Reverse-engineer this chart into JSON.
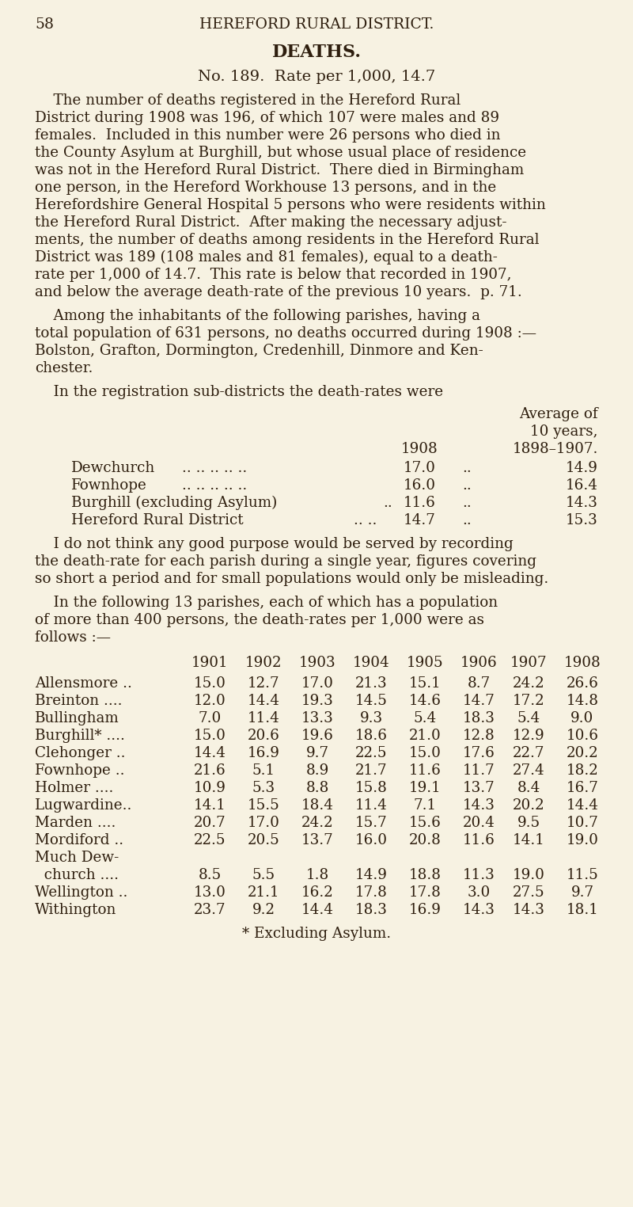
{
  "bg_color": "#f7f2e2",
  "text_color": "#2e1e0e",
  "page_number": "58",
  "header": "HEREFORD RURAL DISTRICT.",
  "title": "DEATHS.",
  "subtitle": "No. 189.  Rate per 1,000, 14.7",
  "p1_lines": [
    "    The number of deaths registered in the Hereford Rural",
    "District during 1908 was 196, of which 107 were males and 89",
    "females.  Included in this number were 26 persons who died in",
    "the County Asylum at Burghill, but whose usual place of residence",
    "was not in the Hereford Rural District.  There died in Birmingham",
    "one person, in the Hereford Workhouse 13 persons, and in the",
    "Herefordshire General Hospital 5 persons who were residents within",
    "the Hereford Rural District.  After making the necessary adjust-",
    "ments, the number of deaths among residents in the Hereford Rural",
    "District was 189 (108 males and 81 females), equal to a death-",
    "rate per 1,000 of 14.7.  This rate is below that recorded in 1907,",
    "and below the average death-rate of the previous 10 years.  p. 71."
  ],
  "p2_lines": [
    "    Among the inhabitants of the following parishes, having a",
    "total population of 631 persons, no deaths occurred during 1908 :—",
    "Bolston, Grafton, Dormington, Credenhill, Dinmore and Ken-",
    "chester."
  ],
  "p3_lines": [
    "    In the registration sub-districts the death-rates were"
  ],
  "table1_avg_of": "Average of",
  "table1_10years": "10 years,",
  "table1_year_col": "1908",
  "table1_avg_col": "1898–1907.",
  "table1_rows": [
    [
      "Dewchurch",
      ".. .. .. .. ..",
      "17.0",
      "..",
      "14.9"
    ],
    [
      "Fownhope",
      ".. .. .. .. ..",
      "16.0",
      "..",
      "16.4"
    ],
    [
      "Burghill (excluding Asylum)",
      "..",
      "11.6",
      "..",
      "14.3"
    ],
    [
      "Hereford Rural District",
      ".. ..",
      "14.7",
      "..",
      "15.3"
    ]
  ],
  "p4_lines": [
    "    I do not think any good purpose would be served by recording",
    "the death-rate for each parish during a single year, figures covering",
    "so short a period and for small populations would only be misleading."
  ],
  "p5_lines": [
    "    In the following 13 parishes, each of which has a population",
    "of more than 400 persons, the death-rates per 1,000 were as",
    "follows :—"
  ],
  "table2_years": [
    "1901",
    "1902",
    "1903",
    "1904",
    "1905",
    "1906",
    "1907",
    "1908"
  ],
  "table2_rows": [
    [
      "Allensmore ..",
      "15.0",
      "12.7",
      "17.0",
      "21.3",
      "15.1",
      "8.7",
      "24.2",
      "26.6"
    ],
    [
      "Breinton ....",
      "12.0",
      "14.4",
      "19.3",
      "14.5",
      "14.6",
      "14.7",
      "17.2",
      "14.8"
    ],
    [
      "Bullingham",
      "7.0",
      "11.4",
      "13.3",
      "9.3",
      "5.4",
      "18.3",
      "5.4",
      "9.0"
    ],
    [
      "Burghill* ....",
      "15.0",
      "20.6",
      "19.6",
      "18.6",
      "21.0",
      "12.8",
      "12.9",
      "10.6"
    ],
    [
      "Clehonger ..",
      "14.4",
      "16.9",
      "9.7",
      "22.5",
      "15.0",
      "17.6",
      "22.7",
      "20.2"
    ],
    [
      "Fownhope ..",
      "21.6",
      "5.1",
      "8.9",
      "21.7",
      "11.6",
      "11.7",
      "27.4",
      "18.2"
    ],
    [
      "Holmer ....",
      "10.9",
      "5.3",
      "8.8",
      "15.8",
      "19.1",
      "13.7",
      "8.4",
      "16.7"
    ],
    [
      "Lugwardine..",
      "14.1",
      "15.5",
      "18.4",
      "11.4",
      "7.1",
      "14.3",
      "20.2",
      "14.4"
    ],
    [
      "Marden ....",
      "20.7",
      "17.0",
      "24.2",
      "15.7",
      "15.6",
      "20.4",
      "9.5",
      "10.7"
    ],
    [
      "Mordiford ..",
      "22.5",
      "20.5",
      "13.7",
      "16.0",
      "20.8",
      "11.6",
      "14.1",
      "19.0"
    ],
    [
      "Much Dew-",
      "",
      "",
      "",
      "",
      "",
      "",
      "",
      ""
    ],
    [
      "  church ....",
      "8.5",
      "5.5",
      "1.8",
      "14.9",
      "18.8",
      "11.3",
      "19.0",
      "11.5"
    ],
    [
      "Wellington ..",
      "13.0",
      "21.1",
      "16.2",
      "17.8",
      "17.8",
      "3.0",
      "27.5",
      "9.7"
    ],
    [
      "Withington",
      "23.7",
      "9.2",
      "14.4",
      "18.3",
      "16.9",
      "14.3",
      "14.3",
      "18.1"
    ]
  ],
  "footnote": "* Excluding Asylum."
}
